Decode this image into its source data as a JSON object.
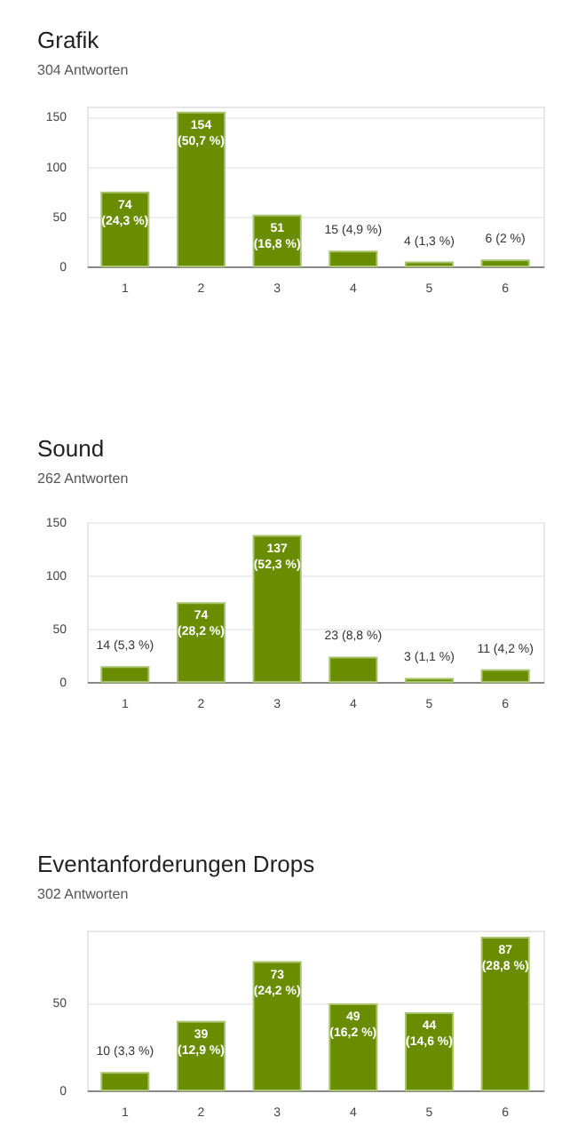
{
  "chart_data": [
    {
      "type": "bar",
      "title": "Grafik",
      "subtitle": "304 Antworten",
      "categories": [
        "1",
        "2",
        "3",
        "4",
        "5",
        "6"
      ],
      "values": [
        74,
        154,
        51,
        15,
        4,
        6
      ],
      "color": "#698c00",
      "ylim": [
        0,
        160
      ],
      "yticks": [
        0,
        50,
        100,
        150
      ],
      "grid": "y",
      "value_labels": [
        "74 (24,3 %)",
        "154 (50,7 %)",
        "51 (16,8 %)",
        "15 (4,9 %)",
        "4 (1,3 %)",
        "6 (2 %)"
      ]
    },
    {
      "type": "bar",
      "title": "Sound",
      "subtitle": "262 Antworten",
      "categories": [
        "1",
        "2",
        "3",
        "4",
        "5",
        "6"
      ],
      "values": [
        14,
        74,
        137,
        23,
        3,
        11
      ],
      "color": "#698c00",
      "ylim": [
        0,
        150
      ],
      "yticks": [
        0,
        50,
        100,
        150
      ],
      "grid": "y",
      "value_labels": [
        "14 (5,3 %)",
        "74 (28,2 %)",
        "137 (52,3 %)",
        "23 (8,8 %)",
        "3 (1,1 %)",
        "11 (4,2 %)"
      ]
    },
    {
      "type": "bar",
      "title": "Eventanforderungen Drops",
      "subtitle": "302 Antworten",
      "categories": [
        "1",
        "2",
        "3",
        "4",
        "5",
        "6"
      ],
      "values": [
        10,
        39,
        73,
        49,
        44,
        87
      ],
      "color": "#698c00",
      "ylim": [
        0,
        91
      ],
      "yticks": [
        0,
        50
      ],
      "grid": "y",
      "value_labels": [
        "10 (3,3 %)",
        "39 (12,9 %)",
        "73 (24,2 %)",
        "49 (16,2 %)",
        "44 (14,6 %)",
        "87 (28,8 %)"
      ]
    }
  ]
}
